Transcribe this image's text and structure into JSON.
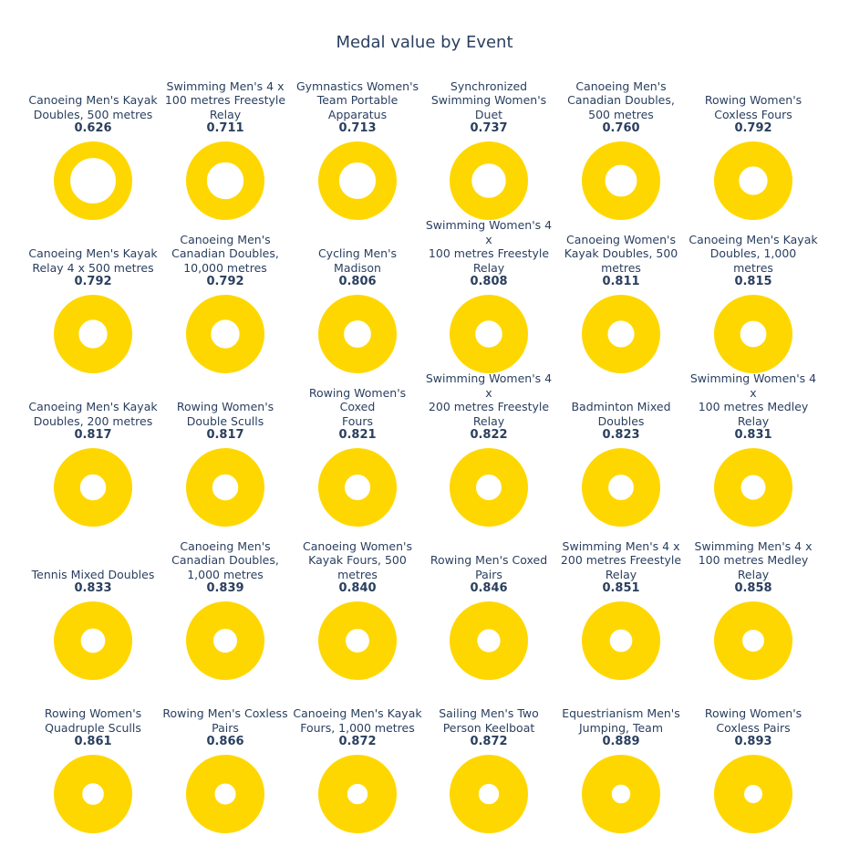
{
  "chart_data": {
    "type": "donut-grid",
    "title": "Medal value by Event",
    "color": "#FFD700",
    "value_max": 1.0,
    "columns": 6,
    "items": [
      {
        "event": "Canoeing Men's Kayak Doubles, 500 metres",
        "lines": [
          "Canoeing Men's Kayak",
          "Doubles, 500 metres"
        ],
        "value": "0.626"
      },
      {
        "event": "Swimming Men's 4 x 100 metres Freestyle Relay",
        "lines": [
          "Swimming Men's 4 x",
          "100 metres Freestyle",
          "Relay"
        ],
        "value": "0.711"
      },
      {
        "event": "Gymnastics Women's Team Portable Apparatus",
        "lines": [
          "Gymnastics Women's",
          "Team Portable",
          "Apparatus"
        ],
        "value": "0.713"
      },
      {
        "event": "Synchronized Swimming Women's Duet",
        "lines": [
          "Synchronized",
          "Swimming Women's",
          "Duet"
        ],
        "value": "0.737"
      },
      {
        "event": "Canoeing Men's Canadian Doubles, 500 metres",
        "lines": [
          "Canoeing Men's",
          "Canadian Doubles,",
          "500 metres"
        ],
        "value": "0.760"
      },
      {
        "event": "Rowing Women's Coxless Fours",
        "lines": [
          "Rowing Women's",
          "Coxless Fours"
        ],
        "value": "0.792"
      },
      {
        "event": "Canoeing Men's Kayak Relay 4 x 500 metres",
        "lines": [
          "Canoeing Men's Kayak",
          "Relay 4 x 500 metres"
        ],
        "value": "0.792"
      },
      {
        "event": "Canoeing Men's Canadian Doubles, 10,000 metres",
        "lines": [
          "Canoeing Men's",
          "Canadian Doubles,",
          "10,000 metres"
        ],
        "value": "0.792"
      },
      {
        "event": "Cycling Men's Madison",
        "lines": [
          "Cycling Men's",
          "Madison"
        ],
        "value": "0.806"
      },
      {
        "event": "Swimming Women's 4 x 100 metres Freestyle Relay",
        "lines": [
          "Swimming Women's 4 x",
          "100 metres Freestyle",
          "Relay"
        ],
        "value": "0.808"
      },
      {
        "event": "Canoeing Women's Kayak Doubles, 500 metres",
        "lines": [
          "Canoeing Women's",
          "Kayak Doubles, 500",
          "metres"
        ],
        "value": "0.811"
      },
      {
        "event": "Canoeing Men's Kayak Doubles, 1,000 metres",
        "lines": [
          "Canoeing Men's Kayak",
          "Doubles, 1,000",
          "metres"
        ],
        "value": "0.815"
      },
      {
        "event": "Canoeing Men's Kayak Doubles, 200 metres",
        "lines": [
          "Canoeing Men's Kayak",
          "Doubles, 200 metres"
        ],
        "value": "0.817"
      },
      {
        "event": "Rowing Women's Double Sculls",
        "lines": [
          "Rowing Women's",
          "Double Sculls"
        ],
        "value": "0.817"
      },
      {
        "event": "Rowing Women's Coxed Fours",
        "lines": [
          "Rowing Women's Coxed",
          "Fours"
        ],
        "value": "0.821"
      },
      {
        "event": "Swimming Women's 4 x 200 metres Freestyle Relay",
        "lines": [
          "Swimming Women's 4 x",
          "200 metres Freestyle",
          "Relay"
        ],
        "value": "0.822"
      },
      {
        "event": "Badminton Mixed Doubles",
        "lines": [
          "Badminton Mixed",
          "Doubles"
        ],
        "value": "0.823"
      },
      {
        "event": "Swimming Women's 4 x 100 metres Medley Relay",
        "lines": [
          "Swimming Women's 4 x",
          "100 metres Medley",
          "Relay"
        ],
        "value": "0.831"
      },
      {
        "event": "Tennis Mixed Doubles",
        "lines": [
          "Tennis Mixed Doubles"
        ],
        "value": "0.833"
      },
      {
        "event": "Canoeing Men's Canadian Doubles, 1,000 metres",
        "lines": [
          "Canoeing Men's",
          "Canadian Doubles,",
          "1,000 metres"
        ],
        "value": "0.839"
      },
      {
        "event": "Canoeing Women's Kayak Fours, 500 metres",
        "lines": [
          "Canoeing Women's",
          "Kayak Fours, 500",
          "metres"
        ],
        "value": "0.840"
      },
      {
        "event": "Rowing Men's Coxed Pairs",
        "lines": [
          "Rowing Men's Coxed",
          "Pairs"
        ],
        "value": "0.846"
      },
      {
        "event": "Swimming Men's 4 x 200 metres Freestyle Relay",
        "lines": [
          "Swimming Men's 4 x",
          "200 metres Freestyle",
          "Relay"
        ],
        "value": "0.851"
      },
      {
        "event": "Swimming Men's 4 x 100 metres Medley Relay",
        "lines": [
          "Swimming Men's 4 x",
          "100 metres Medley",
          "Relay"
        ],
        "value": "0.858"
      },
      {
        "event": "Rowing Women's Quadruple Sculls",
        "lines": [
          "Rowing Women's",
          "Quadruple Sculls"
        ],
        "value": "0.861"
      },
      {
        "event": "Rowing Men's Coxless Pairs",
        "lines": [
          "Rowing Men's Coxless",
          "Pairs"
        ],
        "value": "0.866"
      },
      {
        "event": "Canoeing Men's Kayak Fours, 1,000 metres",
        "lines": [
          "Canoeing Men's Kayak",
          "Fours, 1,000 metres"
        ],
        "value": "0.872"
      },
      {
        "event": "Sailing Men's Two Person Keelboat",
        "lines": [
          "Sailing Men's Two",
          "Person Keelboat"
        ],
        "value": "0.872"
      },
      {
        "event": "Equestrianism Men's Jumping, Team",
        "lines": [
          "Equestrianism Men's",
          "Jumping, Team"
        ],
        "value": "0.889"
      },
      {
        "event": "Rowing Women's Coxless Pairs",
        "lines": [
          "Rowing Women's",
          "Coxless Pairs"
        ],
        "value": "0.893"
      }
    ]
  }
}
